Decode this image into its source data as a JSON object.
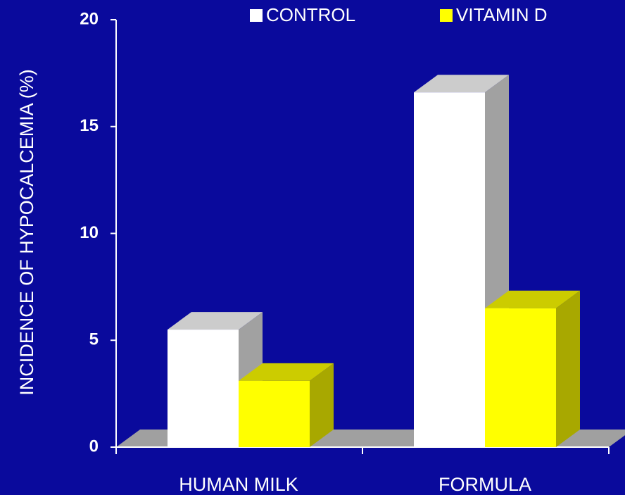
{
  "chart_data": {
    "type": "bar3d",
    "y_axis_label": "INCIDENCE OF HYPOCALCEMIA  (%)",
    "categories": [
      "HUMAN MILK",
      "FORMULA"
    ],
    "series": [
      {
        "name": "CONTROL",
        "color": "#ffffff",
        "values": [
          5.5,
          16.6
        ]
      },
      {
        "name": "VITAMIN D",
        "color": "#ffff00",
        "values": [
          3.1,
          6.5
        ]
      }
    ],
    "ylim": [
      0,
      20
    ],
    "yticks": [
      0,
      5,
      10,
      15,
      20
    ],
    "grid": false,
    "legend": "top"
  }
}
